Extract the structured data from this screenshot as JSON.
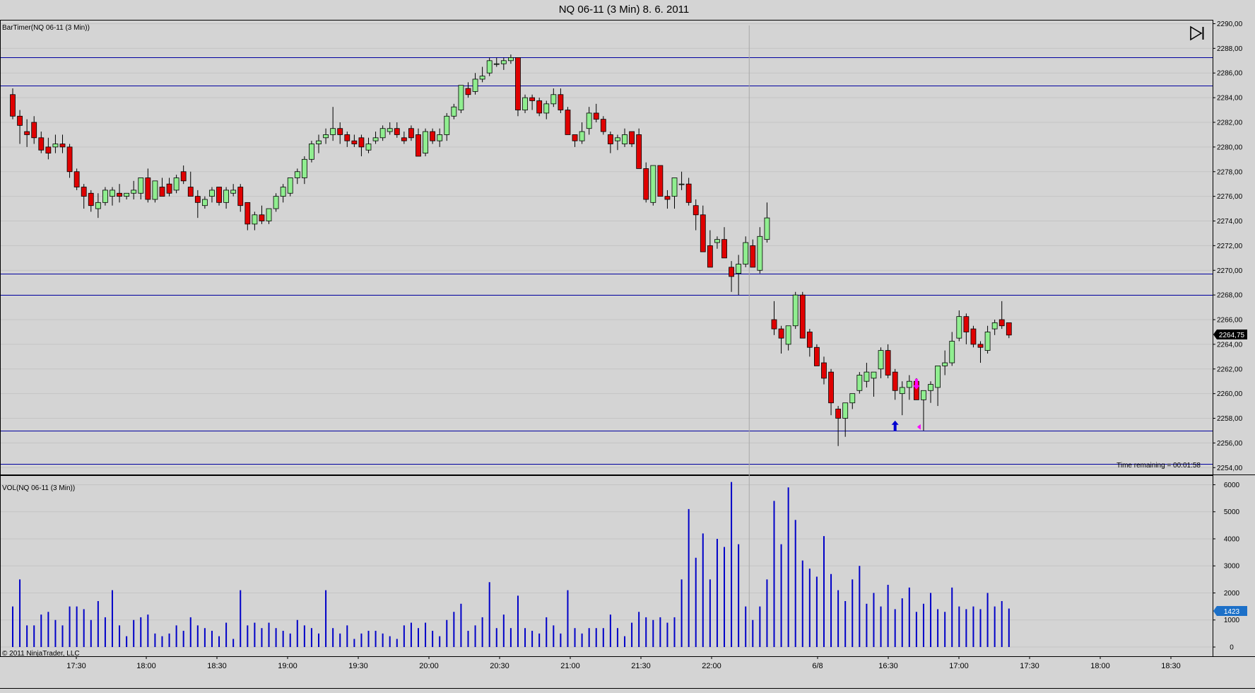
{
  "window_title": "NQ 06-11 (3 Min)  8. 6. 2011",
  "price_panel": {
    "label": "BarTimer(NQ 06-11 (3 Min))",
    "time_remaining": "Time remaining = 00:01:58",
    "last_price": "2264,75",
    "ticks": [
      "2254,00",
      "2256,00",
      "2258,00",
      "2260,00",
      "2262,00",
      "2264,00",
      "2266,00",
      "2268,00",
      "2270,00",
      "2272,00",
      "2274,00",
      "2276,00",
      "2278,00",
      "2280,00",
      "2282,00",
      "2284,00",
      "2286,00",
      "2288,00",
      "2290,00"
    ]
  },
  "volume_panel": {
    "label": "VOL(NQ 06-11 (3 Min))",
    "ticks": [
      "0",
      "1000",
      "2000",
      "3000",
      "4000",
      "5000",
      "6000"
    ],
    "last_volume": "1423"
  },
  "time_axis": [
    "17:30",
    "18:00",
    "18:30",
    "19:00",
    "19:30",
    "20:00",
    "20:30",
    "21:00",
    "21:30",
    "22:00",
    "6/8",
    "16:30",
    "17:00",
    "17:30",
    "18:00",
    "18:30"
  ],
  "copyright": "© 2011 NinjaTrader, LLC",
  "colors": {
    "up": "#90ee90",
    "down": "#e00000",
    "level_lines": "#0000a0",
    "volume": "#0000c8",
    "background": "#d4d4d4"
  },
  "icons": [
    "skip-to-end-icon",
    "buy-arrow-icon",
    "sell-arrow-icon"
  ],
  "chart_data": {
    "type": "candlestick",
    "price_range": [
      2253.5,
      2290.2
    ],
    "volume_range": [
      0,
      6300
    ],
    "horizontal_levels": [
      2287.25,
      2285.0,
      2269.75,
      2268.0,
      2257.0,
      2254.3
    ],
    "session_separator_index": 104,
    "markers": [
      {
        "type": "buy-arrow",
        "index": 124,
        "price": 2257.3
      },
      {
        "type": "sell-arrow",
        "index": 127,
        "price": 2260.8
      }
    ],
    "bars": [
      [
        2284.25,
        2284.75,
        2282.25,
        2282.5,
        1500
      ],
      [
        2282.5,
        2283.0,
        2280.25,
        2281.75,
        2500
      ],
      [
        2281.25,
        2282.25,
        2280.0,
        2281.0,
        800
      ],
      [
        2282.0,
        2282.5,
        2280.25,
        2280.75,
        800
      ],
      [
        2280.75,
        2281.25,
        2279.5,
        2279.75,
        1200
      ],
      [
        2280.0,
        2280.75,
        2279.0,
        2279.5,
        1300
      ],
      [
        2280.0,
        2281.0,
        2279.5,
        2280.25,
        1000
      ],
      [
        2280.25,
        2281.0,
        2279.5,
        2280.0,
        800
      ],
      [
        2280.0,
        2280.25,
        2277.5,
        2278.0,
        1500
      ],
      [
        2278.0,
        2278.25,
        2276.5,
        2276.75,
        1500
      ],
      [
        2276.75,
        2277.0,
        2275.0,
        2276.0,
        1400
      ],
      [
        2276.25,
        2276.5,
        2274.75,
        2275.25,
        1000
      ],
      [
        2275.0,
        2276.25,
        2274.25,
        2275.5,
        1700
      ],
      [
        2275.5,
        2276.75,
        2275.25,
        2276.5,
        1100
      ],
      [
        2276.0,
        2276.75,
        2275.25,
        2276.5,
        2100
      ],
      [
        2276.25,
        2277.0,
        2275.5,
        2276.0,
        800
      ],
      [
        2276.0,
        2276.25,
        2275.75,
        2276.25,
        400
      ],
      [
        2276.25,
        2277.25,
        2275.75,
        2276.5,
        1000
      ],
      [
        2276.25,
        2277.5,
        2275.75,
        2277.5,
        1100
      ],
      [
        2277.5,
        2278.25,
        2275.5,
        2275.75,
        1200
      ],
      [
        2275.75,
        2277.25,
        2275.5,
        2277.25,
        500
      ],
      [
        2276.75,
        2277.5,
        2276.0,
        2276.0,
        400
      ],
      [
        2277.0,
        2277.5,
        2276.0,
        2276.25,
        500
      ],
      [
        2276.5,
        2277.75,
        2276.25,
        2277.5,
        800
      ],
      [
        2278.0,
        2278.5,
        2277.0,
        2277.25,
        600
      ],
      [
        2276.75,
        2278.0,
        2276.0,
        2276.0,
        1100
      ],
      [
        2276.0,
        2276.5,
        2274.25,
        2275.5,
        800
      ],
      [
        2275.25,
        2276.0,
        2275.0,
        2275.75,
        700
      ],
      [
        2276.0,
        2276.75,
        2275.5,
        2276.5,
        600
      ],
      [
        2276.75,
        2276.75,
        2275.25,
        2275.5,
        400
      ],
      [
        2275.5,
        2276.75,
        2275.0,
        2276.5,
        900
      ],
      [
        2276.25,
        2277.0,
        2276.0,
        2276.5,
        300
      ],
      [
        2276.75,
        2277.0,
        2274.75,
        2275.25,
        2100
      ],
      [
        2275.5,
        2275.5,
        2273.25,
        2273.75,
        800
      ],
      [
        2273.75,
        2274.75,
        2273.25,
        2274.5,
        900
      ],
      [
        2274.5,
        2275.25,
        2273.75,
        2274.0,
        700
      ],
      [
        2274.0,
        2275.0,
        2273.75,
        2275.0,
        900
      ],
      [
        2275.0,
        2276.25,
        2274.75,
        2276.0,
        700
      ],
      [
        2276.0,
        2277.0,
        2275.5,
        2276.75,
        600
      ],
      [
        2276.25,
        2277.5,
        2276.0,
        2277.5,
        500
      ],
      [
        2277.5,
        2278.25,
        2277.0,
        2278.0,
        1000
      ],
      [
        2277.5,
        2279.25,
        2277.0,
        2279.0,
        800
      ],
      [
        2279.0,
        2280.5,
        2278.75,
        2280.25,
        700
      ],
      [
        2280.25,
        2281.0,
        2279.5,
        2280.5,
        500
      ],
      [
        2280.75,
        2281.5,
        2280.25,
        2281.0,
        2100
      ],
      [
        2281.0,
        2283.25,
        2280.5,
        2281.5,
        700
      ],
      [
        2281.5,
        2282.0,
        2280.25,
        2281.0,
        500
      ],
      [
        2281.0,
        2281.25,
        2280.0,
        2280.5,
        800
      ],
      [
        2280.5,
        2281.0,
        2280.0,
        2280.25,
        300
      ],
      [
        2280.75,
        2281.0,
        2279.25,
        2280.0,
        500
      ],
      [
        2279.75,
        2280.75,
        2279.5,
        2280.25,
        600
      ],
      [
        2280.5,
        2281.25,
        2280.25,
        2280.75,
        600
      ],
      [
        2280.75,
        2281.75,
        2280.5,
        2281.5,
        500
      ],
      [
        2281.25,
        2282.0,
        2281.0,
        2281.5,
        400
      ],
      [
        2281.5,
        2282.0,
        2280.75,
        2281.0,
        300
      ],
      [
        2280.75,
        2281.25,
        2280.25,
        2280.5,
        800
      ],
      [
        2281.5,
        2281.75,
        2280.5,
        2280.75,
        900
      ],
      [
        2281.0,
        2281.5,
        2279.25,
        2279.25,
        700
      ],
      [
        2279.5,
        2281.5,
        2279.25,
        2281.25,
        900
      ],
      [
        2281.25,
        2281.5,
        2280.25,
        2280.5,
        600
      ],
      [
        2280.5,
        2281.5,
        2280.0,
        2281.0,
        400
      ],
      [
        2281.0,
        2282.75,
        2280.5,
        2282.5,
        1000
      ],
      [
        2282.5,
        2283.5,
        2282.25,
        2283.25,
        1300
      ],
      [
        2283.0,
        2285.0,
        2282.75,
        2285.0,
        1600
      ],
      [
        2284.75,
        2285.25,
        2284.0,
        2284.25,
        600
      ],
      [
        2284.5,
        2286.0,
        2284.25,
        2285.5,
        800
      ],
      [
        2285.5,
        2286.5,
        2285.25,
        2285.75,
        1100
      ],
      [
        2286.0,
        2287.25,
        2285.75,
        2287.0,
        2400
      ],
      [
        2286.75,
        2287.25,
        2286.5,
        2286.75,
        700
      ],
      [
        2286.75,
        2287.25,
        2286.25,
        2287.0,
        1200
      ],
      [
        2287.0,
        2287.5,
        2286.75,
        2287.25,
        700
      ],
      [
        2287.25,
        2287.25,
        2282.5,
        2283.0,
        1900
      ],
      [
        2283.0,
        2284.25,
        2282.75,
        2284.0,
        700
      ],
      [
        2284.0,
        2284.25,
        2283.0,
        2283.75,
        600
      ],
      [
        2283.75,
        2284.0,
        2282.5,
        2282.75,
        500
      ],
      [
        2282.75,
        2283.75,
        2282.25,
        2283.5,
        1100
      ],
      [
        2283.5,
        2284.75,
        2283.25,
        2284.25,
        800
      ],
      [
        2284.25,
        2284.75,
        2282.75,
        2283.0,
        500
      ],
      [
        2283.0,
        2283.25,
        2281.0,
        2281.0,
        2100
      ],
      [
        2281.0,
        2281.0,
        2280.0,
        2280.5,
        700
      ],
      [
        2280.5,
        2282.0,
        2280.25,
        2281.25,
        500
      ],
      [
        2281.5,
        2283.25,
        2281.0,
        2282.75,
        700
      ],
      [
        2282.75,
        2283.5,
        2282.0,
        2282.25,
        700
      ],
      [
        2282.25,
        2282.5,
        2281.0,
        2281.25,
        700
      ],
      [
        2281.0,
        2281.25,
        2279.5,
        2280.25,
        1200
      ],
      [
        2280.5,
        2281.0,
        2279.75,
        2280.75,
        700
      ],
      [
        2280.25,
        2281.5,
        2280.0,
        2281.0,
        400
      ],
      [
        2281.25,
        2281.25,
        2280.0,
        2280.25,
        900
      ],
      [
        2281.0,
        2281.5,
        2278.5,
        2278.25,
        1300
      ],
      [
        2278.25,
        2278.75,
        2275.5,
        2275.75,
        1100
      ],
      [
        2275.5,
        2278.5,
        2275.25,
        2278.5,
        1000
      ],
      [
        2278.5,
        2278.5,
        2276.0,
        2276.0,
        1100
      ],
      [
        2276.0,
        2276.5,
        2275.0,
        2275.75,
        900
      ],
      [
        2276.0,
        2277.5,
        2275.0,
        2277.5,
        1100
      ],
      [
        2277.0,
        2278.0,
        2276.5,
        2277.0,
        2500
      ],
      [
        2277.0,
        2277.5,
        2275.25,
        2275.5,
        5100
      ],
      [
        2275.25,
        2275.75,
        2273.25,
        2274.5,
        3300
      ],
      [
        2274.5,
        2275.25,
        2272.25,
        2271.5,
        4200
      ],
      [
        2272.0,
        2273.25,
        2270.75,
        2270.25,
        2500
      ],
      [
        2272.25,
        2272.75,
        2271.75,
        2272.5,
        4000
      ],
      [
        2272.5,
        2273.5,
        2271.0,
        2271.0,
        3700
      ],
      [
        2270.25,
        2270.75,
        2268.25,
        2269.5,
        6100
      ],
      [
        2269.75,
        2271.25,
        2268.0,
        2270.5,
        3800
      ],
      [
        2270.5,
        2272.75,
        2270.25,
        2272.25,
        1500
      ],
      [
        2272.0,
        2272.5,
        2270.25,
        2270.25,
        1000
      ],
      [
        2270.0,
        2273.5,
        2269.75,
        2272.75,
        1500
      ],
      [
        2272.5,
        2275.5,
        2272.25,
        2274.25,
        2500
      ],
      [
        2266.0,
        2267.5,
        2264.75,
        2265.25,
        5400
      ],
      [
        2265.25,
        2265.5,
        2263.25,
        2264.5,
        3800
      ],
      [
        2264.0,
        2265.25,
        2263.5,
        2265.5,
        5900
      ],
      [
        2265.5,
        2268.25,
        2265.25,
        2268.0,
        4700
      ],
      [
        2268.0,
        2268.25,
        2264.75,
        2264.5,
        3200
      ],
      [
        2265.0,
        2265.25,
        2263.0,
        2263.75,
        2900
      ],
      [
        2263.75,
        2264.0,
        2262.5,
        2262.25,
        2600
      ],
      [
        2262.5,
        2263.0,
        2260.75,
        2261.25,
        4100
      ],
      [
        2261.75,
        2262.0,
        2258.25,
        2259.25,
        2700
      ],
      [
        2258.75,
        2259.0,
        2255.75,
        2258.0,
        2100
      ],
      [
        2258.0,
        2259.0,
        2256.5,
        2259.25,
        1700
      ],
      [
        2259.25,
        2260.0,
        2258.75,
        2260.0,
        2500
      ],
      [
        2260.25,
        2261.75,
        2260.0,
        2261.5,
        3000
      ],
      [
        2261.0,
        2262.5,
        2260.5,
        2261.75,
        1600
      ],
      [
        2261.25,
        2261.75,
        2259.75,
        2261.75,
        2000
      ],
      [
        2262.0,
        2263.75,
        2261.25,
        2263.5,
        1500
      ],
      [
        2263.5,
        2264.0,
        2261.25,
        2261.5,
        2300
      ],
      [
        2261.75,
        2262.0,
        2259.5,
        2260.25,
        1400
      ],
      [
        2260.0,
        2261.0,
        2258.25,
        2260.5,
        1800
      ],
      [
        2260.5,
        2261.5,
        2259.5,
        2261.0,
        2200
      ],
      [
        2261.0,
        2261.25,
        2259.5,
        2259.5,
        1300
      ],
      [
        2259.5,
        2260.0,
        2257.0,
        2260.25,
        1600
      ],
      [
        2260.25,
        2261.0,
        2259.25,
        2260.75,
        2000
      ],
      [
        2260.5,
        2262.0,
        2259.0,
        2262.25,
        1400
      ],
      [
        2262.25,
        2263.5,
        2261.5,
        2262.5,
        1300
      ],
      [
        2262.5,
        2265.0,
        2262.25,
        2264.25,
        2200
      ],
      [
        2264.5,
        2266.75,
        2264.25,
        2266.25,
        1500
      ],
      [
        2266.25,
        2266.5,
        2264.0,
        2265.0,
        1400
      ],
      [
        2265.25,
        2265.5,
        2263.75,
        2264.0,
        1500
      ],
      [
        2264.0,
        2264.25,
        2262.5,
        2263.75,
        1400
      ],
      [
        2263.5,
        2265.5,
        2263.25,
        2265.0,
        2000
      ],
      [
        2265.25,
        2266.0,
        2264.75,
        2265.75,
        1500
      ],
      [
        2266.0,
        2267.5,
        2265.25,
        2265.5,
        1700
      ],
      [
        2265.75,
        2265.75,
        2264.5,
        2264.75,
        1423
      ]
    ]
  }
}
